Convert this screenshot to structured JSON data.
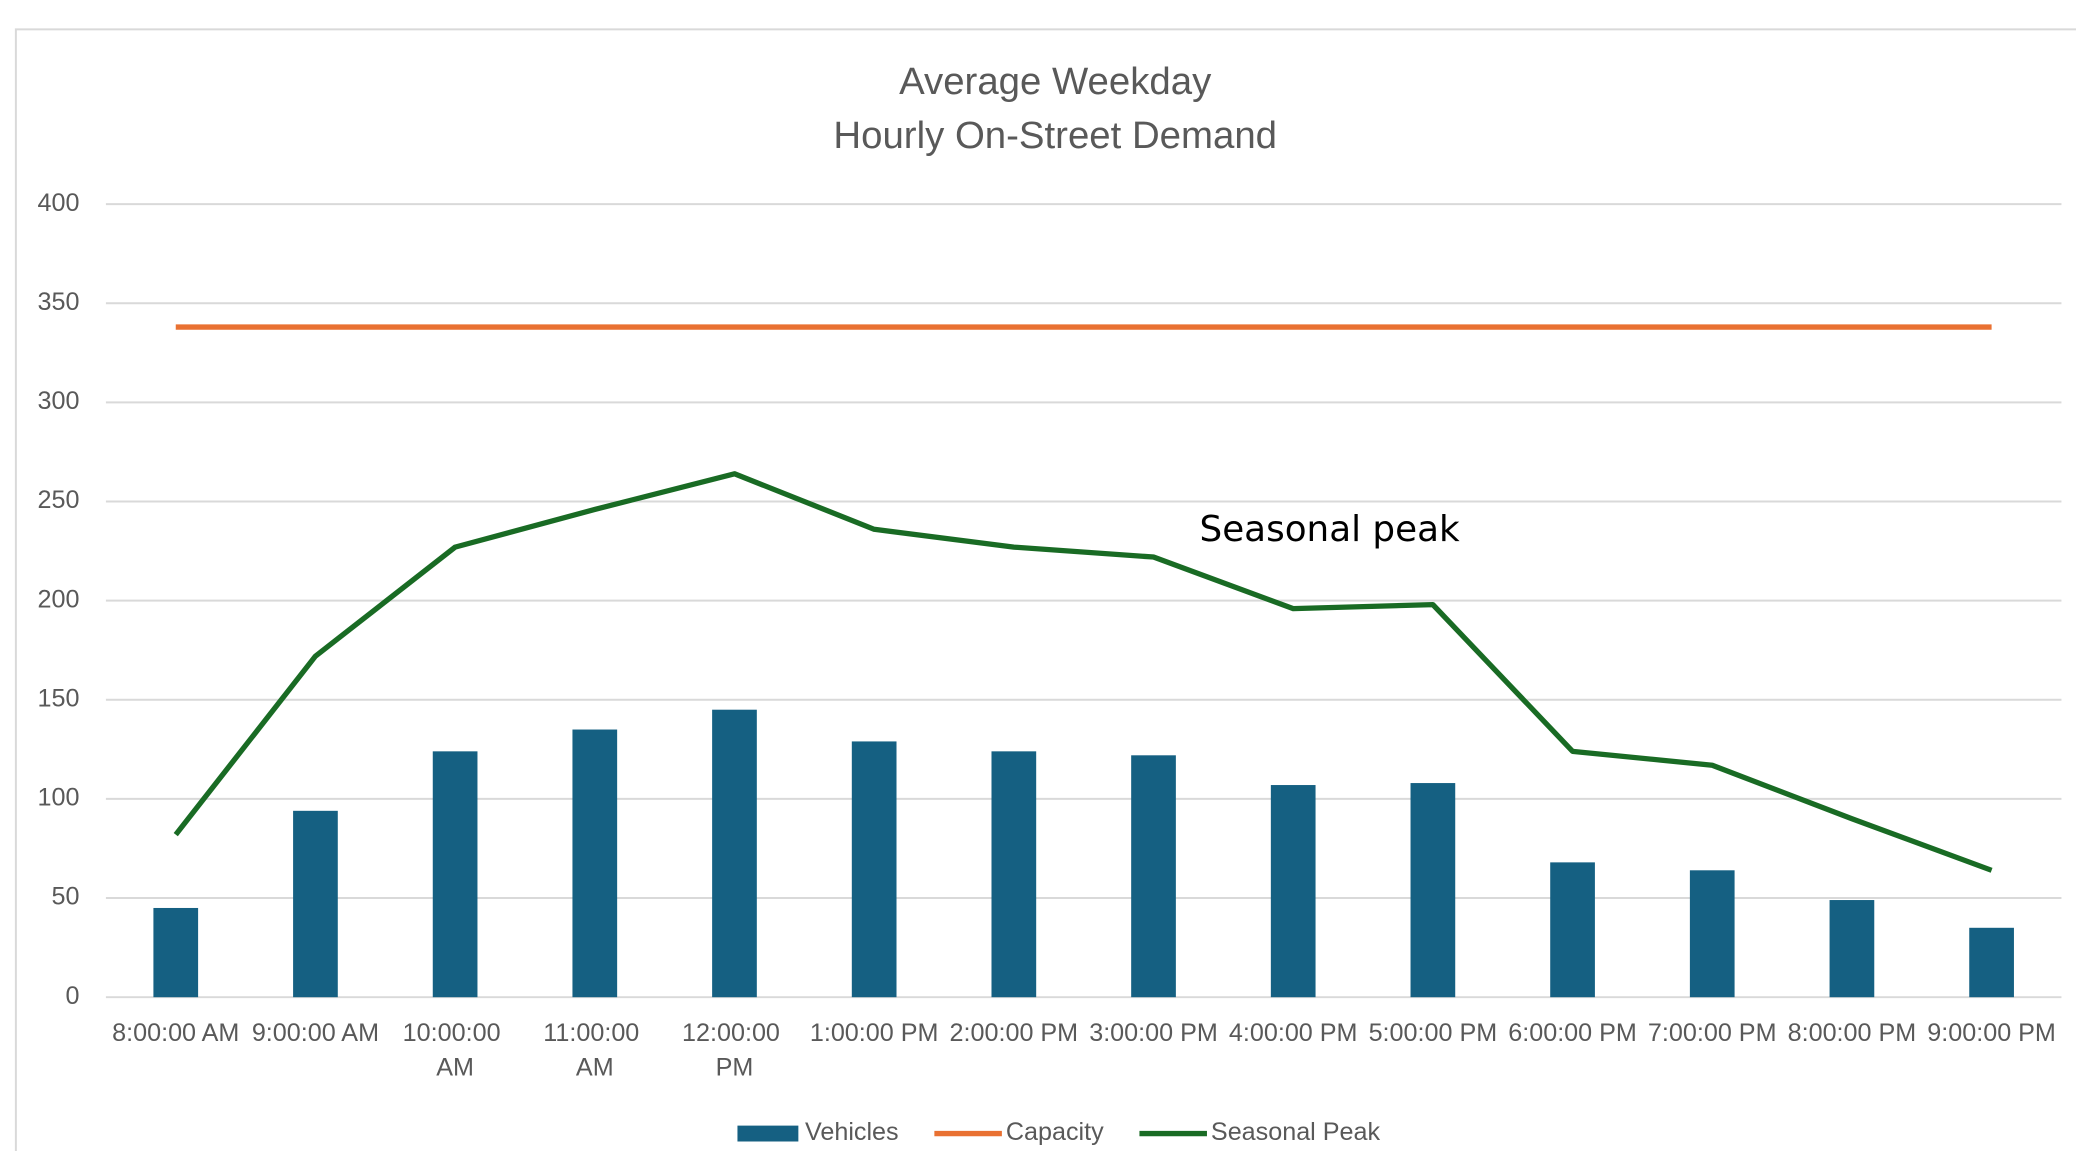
{
  "chart_data": {
    "type": "bar",
    "title": [
      "Average Weekday",
      "Hourly On-Street Demand"
    ],
    "categories": [
      "8:00:00 AM",
      "9:00:00 AM",
      "10:00:00 AM",
      "11:00:00 AM",
      "12:00:00 PM",
      "1:00:00 PM",
      "2:00:00 PM",
      "3:00:00 PM",
      "4:00:00 PM",
      "5:00:00 PM",
      "6:00:00 PM",
      "7:00:00 PM",
      "8:00:00 PM",
      "9:00:00 PM"
    ],
    "series": [
      {
        "name": "Vehicles",
        "type": "bar",
        "color": "#156082",
        "values": [
          45,
          94,
          124,
          135,
          145,
          129,
          124,
          122,
          107,
          108,
          68,
          64,
          49,
          35
        ]
      },
      {
        "name": "Capacity",
        "type": "line",
        "color": "#e97132",
        "values": [
          338,
          338,
          338,
          338,
          338,
          338,
          338,
          338,
          338,
          338,
          338,
          338,
          338,
          338
        ]
      },
      {
        "name": "Seasonal Peak",
        "type": "line",
        "color": "#196b24",
        "values": [
          82,
          172,
          227,
          246,
          264,
          236,
          227,
          222,
          196,
          198,
          124,
          117,
          90,
          64
        ]
      }
    ],
    "annotations": [
      {
        "text": "Seasonal peak"
      }
    ],
    "ylim": [
      0,
      400
    ],
    "yticks": [
      0,
      50,
      100,
      150,
      200,
      250,
      300,
      350,
      400
    ],
    "grid": true,
    "legend": "bottom"
  }
}
